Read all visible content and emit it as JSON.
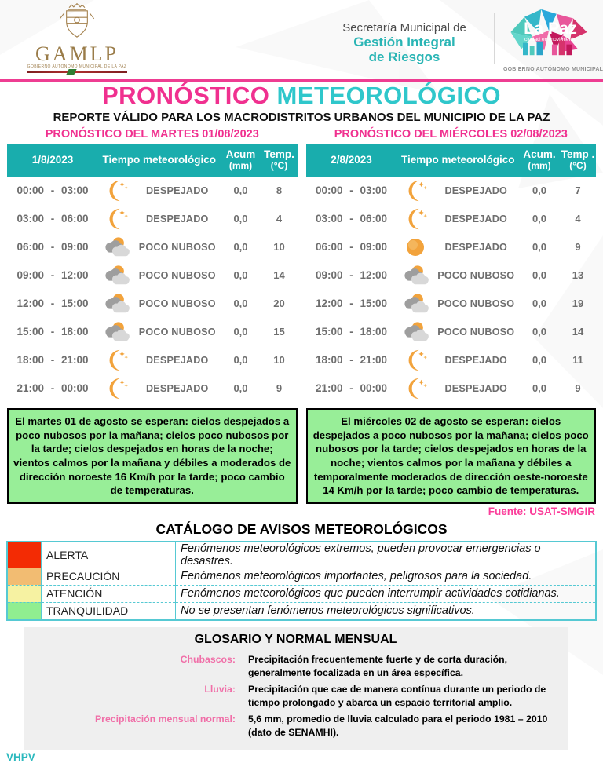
{
  "header": {
    "gamlp": {
      "acronym": "GAMLP",
      "caption": "GOBIERNO AUTÓNOMO MUNICIPAL DE LA PAZ"
    },
    "secretaria": {
      "line1": "Secretaría Municipal de",
      "line2": "Gestión Integral",
      "line3": "de Riesgos"
    },
    "lapaz": {
      "title": "La Paz",
      "subtitle": "ciudad en movimiento",
      "caption": "GOBIERNO AUTÓNOMO MUNICIPAL"
    }
  },
  "title": {
    "part1": "PRONÓSTICO",
    "part2": " METEOROLÓGICO"
  },
  "subtitle": "REPORTE VÁLIDO PARA LOS MACRODISTRITOS URBANOS DEL MUNICIPIO DE LA PAZ",
  "tables": [
    {
      "title": "PRONÓSTICO DEL MARTES 01/08/2023",
      "headers": {
        "date": "1/8/2023",
        "weather": "Tiempo meteorológico",
        "acum": "Acum",
        "acum_unit": "(mm)",
        "temp": "Temp.",
        "temp_unit": "(°C)"
      },
      "rows": [
        {
          "time": "00:00 - 03:00",
          "icon": "crescent-moon",
          "condition": "DESPEJADO",
          "acum": "0,0",
          "temp": "8"
        },
        {
          "time": "03:00 - 06:00",
          "icon": "crescent-moon",
          "condition": "DESPEJADO",
          "acum": "0,0",
          "temp": "4"
        },
        {
          "time": "06:00 - 09:00",
          "icon": "partly-cloudy",
          "condition": "POCO NUBOSO",
          "acum": "0,0",
          "temp": "10"
        },
        {
          "time": "09:00 - 12:00",
          "icon": "partly-cloudy",
          "condition": "POCO NUBOSO",
          "acum": "0,0",
          "temp": "14"
        },
        {
          "time": "12:00 - 15:00",
          "icon": "partly-cloudy",
          "condition": "POCO NUBOSO",
          "acum": "0,0",
          "temp": "20"
        },
        {
          "time": "15:00 - 18:00",
          "icon": "partly-cloudy",
          "condition": "POCO NUBOSO",
          "acum": "0,0",
          "temp": "15"
        },
        {
          "time": "18:00 - 21:00",
          "icon": "crescent-moon",
          "condition": "DESPEJADO",
          "acum": "0,0",
          "temp": "10"
        },
        {
          "time": "21:00 - 00:00",
          "icon": "crescent-moon",
          "condition": "DESPEJADO",
          "acum": "0,0",
          "temp": "9"
        }
      ],
      "summary": "El martes 01 de agosto se esperan:  cielos despejados a poco nubosos por la mañana; cielos poco nubosos por la tarde; cielos despejados en horas de la noche; vientos calmos por la mañana y débiles a moderados de dirección noroeste 16 Km/h por la tarde; poco cambio de temperaturas."
    },
    {
      "title": "PRONÓSTICO DEL MIÉRCOLES 02/08/2023",
      "headers": {
        "date": "2/8/2023",
        "weather": "Tiempo  meteorológico",
        "acum": "Acum.",
        "acum_unit": "(mm)",
        "temp": "Temp .",
        "temp_unit": "(°C)"
      },
      "rows": [
        {
          "time": "00:00 - 03:00",
          "icon": "crescent-moon",
          "condition": "DESPEJADO",
          "acum": "0,0",
          "temp": "7"
        },
        {
          "time": "03:00 - 06:00",
          "icon": "crescent-moon",
          "condition": "DESPEJADO",
          "acum": "0,0",
          "temp": "4"
        },
        {
          "time": "06:00 - 09:00",
          "icon": "sun",
          "condition": "DESPEJADO",
          "acum": "0,0",
          "temp": "9"
        },
        {
          "time": "09:00 - 12:00",
          "icon": "partly-cloudy",
          "condition": "POCO NUBOSO",
          "acum": "0,0",
          "temp": "13"
        },
        {
          "time": "12:00 - 15:00",
          "icon": "partly-cloudy",
          "condition": "POCO NUBOSO",
          "acum": "0,0",
          "temp": "19"
        },
        {
          "time": "15:00 - 18:00",
          "icon": "partly-cloudy",
          "condition": "POCO NUBOSO",
          "acum": "0,0",
          "temp": "14"
        },
        {
          "time": "18:00 - 21:00",
          "icon": "crescent-moon",
          "condition": "DESPEJADO",
          "acum": "0,0",
          "temp": "11"
        },
        {
          "time": "21:00 - 00:00",
          "icon": "crescent-moon",
          "condition": "DESPEJADO",
          "acum": "0,0",
          "temp": "9"
        }
      ],
      "summary": "El miércoles 02 de agosto se esperan:  cielos despejados a poco nubosos por la mañana; cielos poco nubosos por la tarde; cielos despejados en horas de la noche; vientos calmos por la mañana y débiles a temporalmente moderados de dirección oeste-noroeste 14 Km/h por la tarde; poco cambio de temperaturas."
    }
  ],
  "fuente": {
    "label": "Fuente:",
    "value": " USAT-SMGIR"
  },
  "catalog": {
    "title": "CATÁLOGO DE AVISOS METEOROLÓGICOS",
    "rows": [
      {
        "id": "alerta",
        "label": "ALERTA",
        "color": "#F32B04",
        "desc": "Fenómenos meteorológicos extremos, pueden provocar emergencias o desastres."
      },
      {
        "id": "precaucion",
        "label": "PRECAUCIÓN",
        "color": "#F2BC72",
        "desc": "Fenómenos meteorológicos importantes, peligrosos para la sociedad."
      },
      {
        "id": "atencion",
        "label": "ATENCIÓN",
        "color": "#F6F2A2",
        "desc": "Fenómenos meteorológicos que pueden interrumpir actividades cotidianas."
      },
      {
        "id": "tranquilidad",
        "label": "TRANQUILIDAD",
        "color": "#90EE90",
        "desc": "No se presentan fenómenos meteorológicos significativos."
      }
    ]
  },
  "glossary": {
    "title": "GLOSARIO Y NORMAL MENSUAL",
    "rows": [
      {
        "label": "Chubascos:",
        "text": "Precipitación frecuentemente fuerte y de corta duración, generalmente focalizada en un área específica."
      },
      {
        "label": "Lluvia:",
        "text": "Precipitación que cae de manera contínua durante un periodo de tiempo prolongado y abarca un espacio territorial amplio."
      },
      {
        "label": "Precipitación mensual normal:",
        "text": "5,6 mm, promedio de lluvia calculado para el periodo 1981 – 2010 (dato de SENAMHI)."
      }
    ]
  },
  "footer": "VHPV",
  "colors": {
    "teal_header": "#19ADAD",
    "title_pink": "#F0308F",
    "title_cyan": "#2FC7CB",
    "summary_green": "#98EE98",
    "catalog_border": "#56C9D3",
    "fuente_pink": "#FB3D9A",
    "glossary_pink": "#F06FA8",
    "footer_teal": "#2BB9BE",
    "gamlp_gold": "#9A7C49",
    "secretaria_teal": "#2AB5B5"
  }
}
